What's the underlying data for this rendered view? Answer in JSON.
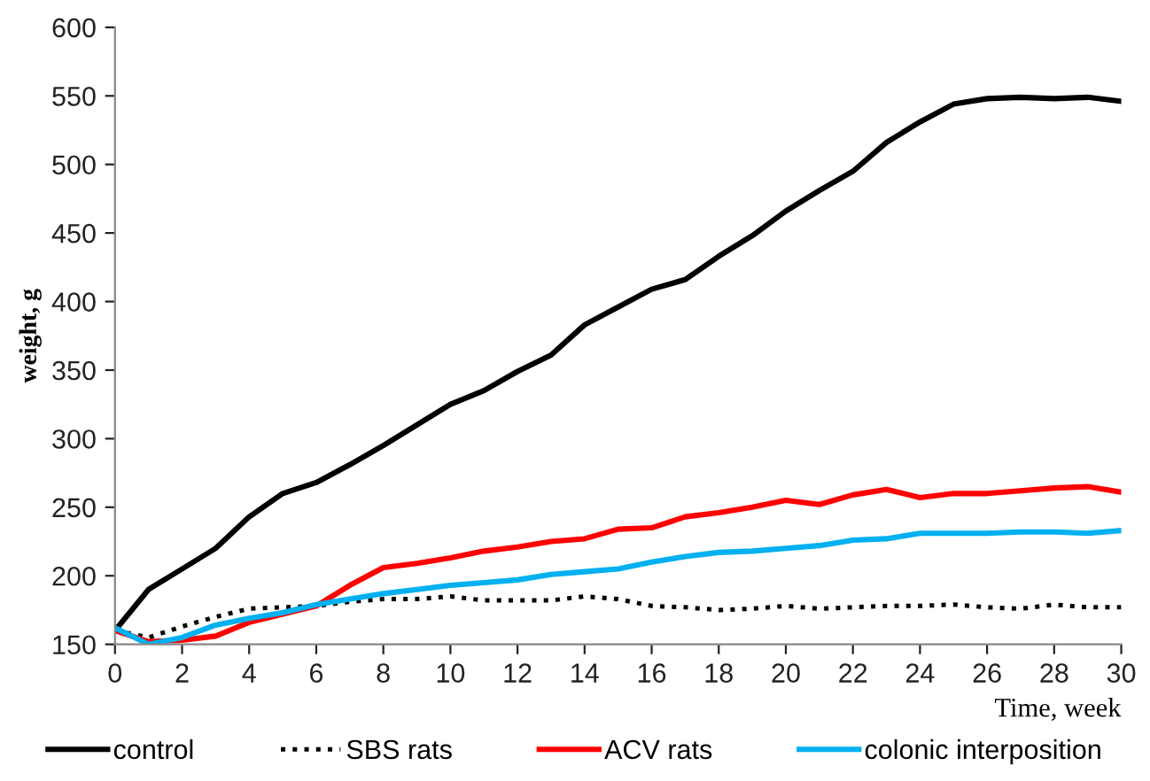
{
  "chart_data": {
    "type": "line",
    "xlabel": "Time, week",
    "ylabel": "weight, g",
    "x": [
      0,
      1,
      2,
      3,
      4,
      5,
      6,
      7,
      8,
      9,
      10,
      11,
      12,
      13,
      14,
      15,
      16,
      17,
      18,
      19,
      20,
      21,
      22,
      23,
      24,
      25,
      26,
      27,
      28,
      29,
      30
    ],
    "series": [
      {
        "name": "control",
        "color": "#000000",
        "line_style": "solid",
        "values": [
          160,
          190,
          205,
          220,
          243,
          260,
          268,
          281,
          295,
          310,
          325,
          335,
          349,
          361,
          383,
          396,
          409,
          416,
          433,
          448,
          466,
          481,
          495,
          516,
          531,
          544,
          548,
          549,
          548,
          549,
          546
        ]
      },
      {
        "name": "SBS rats",
        "color": "#000000",
        "line_style": "dotted",
        "values": [
          160,
          155,
          163,
          170,
          176,
          177,
          178,
          181,
          183,
          183,
          185,
          182,
          182,
          182,
          185,
          183,
          178,
          177,
          175,
          176,
          178,
          176,
          177,
          178,
          178,
          179,
          177,
          176,
          179,
          177,
          177
        ]
      },
      {
        "name": "ACV rats",
        "color": "#ff0000",
        "line_style": "solid",
        "values": [
          160,
          152,
          153,
          156,
          166,
          172,
          178,
          193,
          206,
          209,
          213,
          218,
          221,
          225,
          227,
          234,
          235,
          243,
          246,
          250,
          255,
          252,
          259,
          263,
          257,
          260,
          260,
          262,
          264,
          265,
          261
        ]
      },
      {
        "name": "colonic interposition",
        "color": "#00b0f0",
        "line_style": "solid",
        "values": [
          162,
          150,
          155,
          164,
          169,
          173,
          179,
          183,
          187,
          190,
          193,
          195,
          197,
          201,
          203,
          205,
          210,
          214,
          217,
          218,
          220,
          222,
          226,
          227,
          231,
          231,
          231,
          232,
          232,
          231,
          233
        ]
      }
    ],
    "xlim": [
      0,
      30
    ],
    "xticks": [
      0,
      2,
      4,
      6,
      8,
      10,
      12,
      14,
      16,
      18,
      20,
      22,
      24,
      26,
      28,
      30
    ],
    "ylim": [
      150,
      600
    ],
    "yticks": [
      150,
      200,
      250,
      300,
      350,
      400,
      450,
      500,
      550,
      600
    ],
    "grid": false,
    "legend": "bottom",
    "marker": "none"
  }
}
